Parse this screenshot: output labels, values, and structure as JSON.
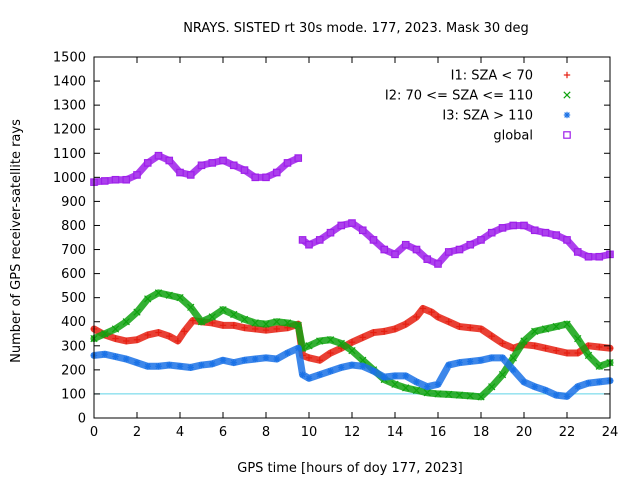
{
  "chart_data": {
    "type": "scatter",
    "title": "NRAYS. SISTED rt 30s mode. 177, 2023. Mask 30 deg",
    "xlabel": "GPS time [hours of doy 177, 2023]",
    "ylabel": "Number of GPS receiver-satellite rays",
    "xlim": [
      0,
      24
    ],
    "ylim": [
      0,
      1500
    ],
    "xticks": [
      0,
      2,
      4,
      6,
      8,
      10,
      12,
      14,
      16,
      18,
      20,
      22,
      24
    ],
    "yticks": [
      0,
      100,
      200,
      300,
      400,
      500,
      600,
      700,
      800,
      900,
      1000,
      1100,
      1200,
      1300,
      1400,
      1500
    ],
    "reference_line": {
      "y": 100,
      "color": "#5fd3e6"
    },
    "legend_position": "top-right",
    "series": [
      {
        "name": "I1: SZA < 70",
        "marker": "+",
        "color": "#e51e10",
        "x": [
          0,
          0.5,
          1,
          1.5,
          2,
          2.5,
          3,
          3.5,
          3.9,
          4.2,
          4.6,
          5,
          5.5,
          6,
          6.5,
          7,
          7.5,
          8,
          8.5,
          9,
          9.5,
          9.7,
          10,
          10.5,
          11,
          11.5,
          12,
          12.5,
          13,
          13.5,
          14,
          14.5,
          15,
          15.3,
          15.7,
          16,
          16.5,
          17,
          17.5,
          18,
          18.5,
          19,
          19.5,
          20,
          20.5,
          21,
          21.5,
          22,
          22.5,
          23,
          23.5,
          24
        ],
        "y": [
          370,
          345,
          330,
          320,
          325,
          345,
          355,
          340,
          320,
          360,
          405,
          400,
          395,
          385,
          385,
          375,
          370,
          365,
          370,
          375,
          390,
          260,
          250,
          240,
          270,
          290,
          315,
          335,
          355,
          360,
          370,
          390,
          420,
          455,
          440,
          420,
          400,
          380,
          375,
          370,
          340,
          310,
          290,
          305,
          300,
          290,
          280,
          270,
          270,
          300,
          295,
          290
        ]
      },
      {
        "name": "I2: 70 <= SZA <= 110",
        "marker": "x",
        "color": "#0fa20f",
        "x": [
          0,
          0.5,
          1,
          1.5,
          2,
          2.5,
          3,
          3.5,
          4,
          4.5,
          5,
          5.5,
          6,
          6.5,
          7,
          7.5,
          8,
          8.5,
          9,
          9.5,
          9.7,
          10,
          10.5,
          11,
          11.5,
          12,
          12.5,
          13,
          13.5,
          14,
          14.5,
          15,
          15.5,
          16,
          16.5,
          17,
          17.5,
          18,
          18.5,
          19,
          19.5,
          20,
          20.5,
          21,
          21.5,
          22,
          22.5,
          23,
          23.5,
          24
        ],
        "y": [
          330,
          350,
          370,
          400,
          440,
          495,
          520,
          510,
          500,
          460,
          400,
          420,
          450,
          430,
          410,
          395,
          390,
          400,
          395,
          385,
          290,
          300,
          320,
          325,
          310,
          280,
          240,
          200,
          160,
          140,
          125,
          115,
          105,
          100,
          98,
          95,
          92,
          88,
          130,
          180,
          250,
          320,
          360,
          370,
          380,
          390,
          330,
          260,
          215,
          230
        ]
      },
      {
        "name": "I3: SZA > 110",
        "marker": "*",
        "color": "#1b72e6",
        "x": [
          0,
          0.5,
          1,
          1.5,
          2,
          2.5,
          3,
          3.5,
          4,
          4.5,
          5,
          5.5,
          6,
          6.5,
          7,
          7.5,
          8,
          8.5,
          9,
          9.5,
          9.7,
          10,
          10.5,
          11,
          11.5,
          12,
          12.5,
          13,
          13.5,
          14,
          14.5,
          15,
          15.5,
          16,
          16.5,
          17,
          17.5,
          18,
          18.5,
          19,
          19.5,
          20,
          20.5,
          21,
          21.5,
          22,
          22.5,
          23,
          23.5,
          24
        ],
        "y": [
          260,
          265,
          255,
          245,
          230,
          215,
          215,
          220,
          215,
          210,
          220,
          225,
          240,
          230,
          240,
          245,
          250,
          245,
          270,
          290,
          180,
          165,
          180,
          195,
          210,
          220,
          215,
          195,
          170,
          175,
          175,
          150,
          130,
          140,
          220,
          230,
          235,
          240,
          250,
          250,
          200,
          150,
          130,
          115,
          95,
          90,
          130,
          145,
          150,
          155
        ]
      },
      {
        "name": "global",
        "marker": "square",
        "color": "#9e1fea",
        "x": [
          0,
          0.5,
          1,
          1.5,
          2,
          2.5,
          3,
          3.5,
          4,
          4.5,
          5,
          5.5,
          6,
          6.5,
          7,
          7.5,
          8,
          8.5,
          9,
          9.5,
          9.7,
          10,
          10.5,
          11,
          11.5,
          12,
          12.5,
          13,
          13.5,
          14,
          14.5,
          15,
          15.5,
          16,
          16.5,
          17,
          17.5,
          18,
          18.5,
          19,
          19.5,
          20,
          20.5,
          21,
          21.5,
          22,
          22.5,
          23,
          23.5,
          24
        ],
        "y": [
          980,
          985,
          990,
          990,
          1010,
          1060,
          1090,
          1070,
          1020,
          1010,
          1050,
          1060,
          1070,
          1050,
          1030,
          1000,
          1000,
          1020,
          1060,
          1080,
          740,
          720,
          740,
          770,
          800,
          810,
          780,
          740,
          700,
          680,
          720,
          700,
          660,
          640,
          690,
          700,
          720,
          740,
          770,
          790,
          800,
          800,
          780,
          770,
          760,
          740,
          690,
          670,
          670,
          680
        ]
      }
    ]
  }
}
